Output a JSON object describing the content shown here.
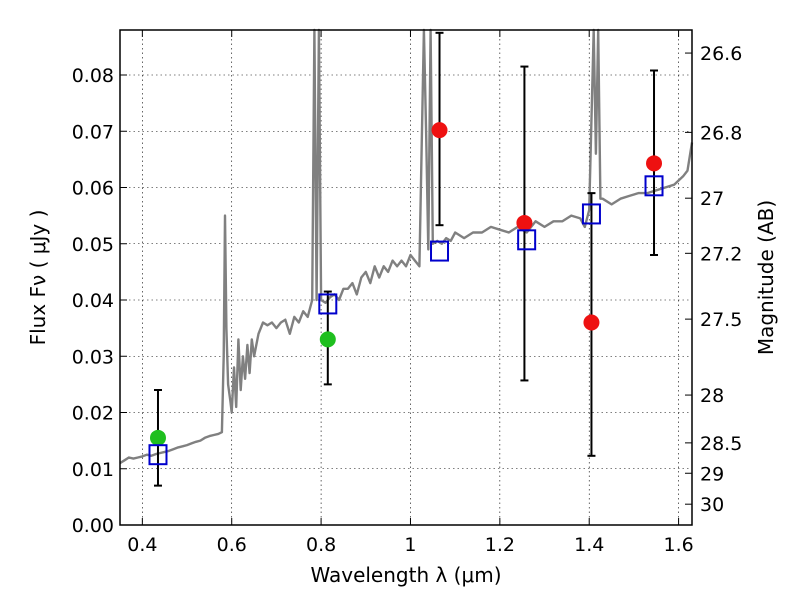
{
  "chart_data": {
    "type": "scatter",
    "xlabel": "Wavelength  λ (μm)",
    "ylabel": "Flux  Fν ( μJy )",
    "ylabel_right": "Magnitude (AB)",
    "xlim": [
      0.35,
      1.63
    ],
    "ylim": [
      0.0,
      0.088
    ],
    "grid": true,
    "x_ticks": [
      0.4,
      0.6,
      0.8,
      1.0,
      1.2,
      1.4,
      1.6
    ],
    "x_tick_labels": [
      "0.4",
      "0.6",
      "0.8",
      "1",
      "1.2",
      "1.4",
      "1.6"
    ],
    "y_ticks": [
      0.0,
      0.01,
      0.02,
      0.03,
      0.04,
      0.05,
      0.06,
      0.07,
      0.08
    ],
    "y_tick_labels": [
      "0.00",
      "0.01",
      "0.02",
      "0.03",
      "0.04",
      "0.05",
      "0.06",
      "0.07",
      "0.08"
    ],
    "right_ticks": [
      {
        "label": "26.6",
        "flux": 0.0839
      },
      {
        "label": "26.8",
        "flux": 0.0698
      },
      {
        "label": "27",
        "flux": 0.0581
      },
      {
        "label": "27.2",
        "flux": 0.0483
      },
      {
        "label": "27.5",
        "flux": 0.0366
      },
      {
        "label": "28",
        "flux": 0.0231
      },
      {
        "label": "28.5",
        "flux": 0.0146
      },
      {
        "label": "29",
        "flux": 0.0092
      },
      {
        "label": "30",
        "flux": 0.0037
      }
    ],
    "series": [
      {
        "kind": "line",
        "color": "#808080",
        "x": [
          0.35,
          0.36,
          0.37,
          0.38,
          0.39,
          0.4,
          0.41,
          0.42,
          0.43,
          0.44,
          0.45,
          0.46,
          0.47,
          0.48,
          0.49,
          0.5,
          0.51,
          0.52,
          0.53,
          0.54,
          0.55,
          0.56,
          0.57,
          0.578,
          0.582,
          0.585,
          0.588,
          0.592,
          0.597,
          0.6,
          0.605,
          0.61,
          0.615,
          0.62,
          0.625,
          0.63,
          0.635,
          0.64,
          0.645,
          0.65,
          0.66,
          0.67,
          0.68,
          0.69,
          0.7,
          0.71,
          0.72,
          0.73,
          0.74,
          0.75,
          0.76,
          0.77,
          0.78,
          0.785,
          0.79,
          0.795,
          0.8,
          0.81,
          0.82,
          0.83,
          0.84,
          0.85,
          0.86,
          0.87,
          0.88,
          0.89,
          0.9,
          0.91,
          0.92,
          0.93,
          0.94,
          0.95,
          0.96,
          0.97,
          0.98,
          0.99,
          1.0,
          1.01,
          1.02,
          1.03,
          1.035,
          1.04,
          1.045,
          1.05,
          1.06,
          1.07,
          1.08,
          1.09,
          1.1,
          1.12,
          1.14,
          1.16,
          1.18,
          1.2,
          1.22,
          1.24,
          1.26,
          1.28,
          1.3,
          1.32,
          1.34,
          1.36,
          1.38,
          1.39,
          1.4,
          1.41,
          1.415,
          1.42,
          1.425,
          1.43,
          1.45,
          1.47,
          1.49,
          1.51,
          1.53,
          1.55,
          1.57,
          1.59,
          1.61,
          1.62,
          1.63
        ],
        "y": [
          0.011,
          0.0115,
          0.012,
          0.0118,
          0.012,
          0.0122,
          0.0125,
          0.0123,
          0.0126,
          0.0128,
          0.013,
          0.0132,
          0.0135,
          0.0138,
          0.014,
          0.0142,
          0.0145,
          0.0148,
          0.015,
          0.0155,
          0.0158,
          0.016,
          0.0162,
          0.0165,
          0.03,
          0.055,
          0.035,
          0.025,
          0.022,
          0.02,
          0.028,
          0.021,
          0.033,
          0.024,
          0.03,
          0.026,
          0.032,
          0.027,
          0.033,
          0.03,
          0.034,
          0.036,
          0.0355,
          0.036,
          0.035,
          0.036,
          0.0365,
          0.034,
          0.037,
          0.036,
          0.038,
          0.037,
          0.04,
          0.088,
          0.04,
          0.088,
          0.04,
          0.0395,
          0.0405,
          0.041,
          0.04,
          0.042,
          0.042,
          0.043,
          0.041,
          0.044,
          0.045,
          0.043,
          0.046,
          0.044,
          0.046,
          0.045,
          0.047,
          0.046,
          0.047,
          0.046,
          0.048,
          0.047,
          0.046,
          0.088,
          0.07,
          0.049,
          0.088,
          0.05,
          0.0505,
          0.05,
          0.051,
          0.0505,
          0.052,
          0.051,
          0.052,
          0.052,
          0.053,
          0.0525,
          0.052,
          0.053,
          0.052,
          0.054,
          0.053,
          0.054,
          0.054,
          0.055,
          0.0545,
          0.053,
          0.056,
          0.088,
          0.066,
          0.088,
          0.058,
          0.058,
          0.057,
          0.058,
          0.0585,
          0.059,
          0.059,
          0.0595,
          0.06,
          0.0605,
          0.062,
          0.063,
          0.068
        ]
      },
      {
        "kind": "points",
        "marker": "circle",
        "color": "#1fbf1f",
        "x": [
          0.435,
          0.815
        ],
        "y": [
          0.0155,
          0.033
        ]
      },
      {
        "kind": "points",
        "marker": "circle",
        "color": "#ee1111",
        "x": [
          1.065,
          1.255,
          1.405,
          1.545
        ],
        "y": [
          0.0702,
          0.0537,
          0.036,
          0.0643
        ]
      },
      {
        "kind": "points",
        "marker": "square",
        "color": "#0000cc",
        "x": [
          0.435,
          0.815,
          1.065,
          1.26,
          1.405,
          1.545
        ],
        "y": [
          0.0125,
          0.0393,
          0.0487,
          0.0507,
          0.0553,
          0.0603
        ]
      }
    ],
    "error_bars": [
      {
        "x": 0.435,
        "ylow": 0.007,
        "yhigh": 0.024
      },
      {
        "x": 0.815,
        "ylow": 0.025,
        "yhigh": 0.0415
      },
      {
        "x": 1.065,
        "ylow": 0.0533,
        "yhigh": 0.0875
      },
      {
        "x": 1.255,
        "ylow": 0.0257,
        "yhigh": 0.0815
      },
      {
        "x": 1.405,
        "ylow": 0.0123,
        "yhigh": 0.059
      },
      {
        "x": 1.545,
        "ylow": 0.048,
        "yhigh": 0.0808
      }
    ]
  }
}
